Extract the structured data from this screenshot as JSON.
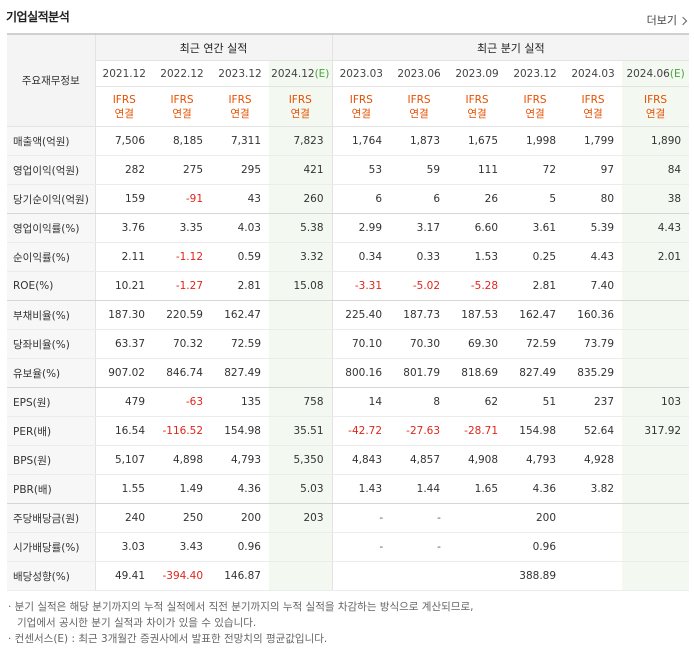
{
  "title": "기업실적분석",
  "more_label": "더보기",
  "header": {
    "row_label": "주요재무정보",
    "annual_group": "최근 연간 실적",
    "quarterly_group": "최근 분기 실적",
    "periods": [
      "2021.12",
      "2022.12",
      "2023.12",
      "2024.12",
      "2023.03",
      "2023.06",
      "2023.09",
      "2023.12",
      "2024.03",
      "2024.06"
    ],
    "estimate_flags": [
      false,
      false,
      false,
      true,
      false,
      false,
      false,
      false,
      false,
      true
    ],
    "estimate_mark": "(E)",
    "standard_top": "IFRS",
    "standard_bottom": "연결"
  },
  "rows": [
    {
      "label": "매출액(억원)",
      "values": [
        "7,506",
        "8,185",
        "7,311",
        "7,823",
        "1,764",
        "1,873",
        "1,675",
        "1,998",
        "1,799",
        "1,890"
      ]
    },
    {
      "label": "영업이익(억원)",
      "values": [
        "282",
        "275",
        "295",
        "421",
        "53",
        "59",
        "111",
        "72",
        "97",
        "84"
      ]
    },
    {
      "label": "당기순이익(억원)",
      "values": [
        "159",
        "-91",
        "43",
        "260",
        "6",
        "6",
        "26",
        "5",
        "80",
        "38"
      ],
      "group_end": true
    },
    {
      "label": "영업이익률(%)",
      "values": [
        "3.76",
        "3.35",
        "4.03",
        "5.38",
        "2.99",
        "3.17",
        "6.60",
        "3.61",
        "5.39",
        "4.43"
      ]
    },
    {
      "label": "순이익률(%)",
      "values": [
        "2.11",
        "-1.12",
        "0.59",
        "3.32",
        "0.34",
        "0.33",
        "1.53",
        "0.25",
        "4.43",
        "2.01"
      ]
    },
    {
      "label": "ROE(%)",
      "values": [
        "10.21",
        "-1.27",
        "2.81",
        "15.08",
        "-3.31",
        "-5.02",
        "-5.28",
        "2.81",
        "7.40",
        ""
      ],
      "group_end": true
    },
    {
      "label": "부채비율(%)",
      "values": [
        "187.30",
        "220.59",
        "162.47",
        "",
        "225.40",
        "187.73",
        "187.53",
        "162.47",
        "160.36",
        ""
      ]
    },
    {
      "label": "당좌비율(%)",
      "values": [
        "63.37",
        "70.32",
        "72.59",
        "",
        "70.10",
        "70.30",
        "69.30",
        "72.59",
        "73.79",
        ""
      ]
    },
    {
      "label": "유보율(%)",
      "values": [
        "907.02",
        "846.74",
        "827.49",
        "",
        "800.16",
        "801.79",
        "818.69",
        "827.49",
        "835.29",
        ""
      ],
      "group_end": true
    },
    {
      "label": "EPS(원)",
      "values": [
        "479",
        "-63",
        "135",
        "758",
        "14",
        "8",
        "62",
        "51",
        "237",
        "103"
      ]
    },
    {
      "label": "PER(배)",
      "values": [
        "16.54",
        "-116.52",
        "154.98",
        "35.51",
        "-42.72",
        "-27.63",
        "-28.71",
        "154.98",
        "52.64",
        "317.92"
      ]
    },
    {
      "label": "BPS(원)",
      "values": [
        "5,107",
        "4,898",
        "4,793",
        "5,350",
        "4,843",
        "4,857",
        "4,908",
        "4,793",
        "4,928",
        ""
      ]
    },
    {
      "label": "PBR(배)",
      "values": [
        "1.55",
        "1.49",
        "4.36",
        "5.03",
        "1.43",
        "1.44",
        "1.65",
        "4.36",
        "3.82",
        ""
      ],
      "group_end": true
    },
    {
      "label": "주당배당금(원)",
      "values": [
        "240",
        "250",
        "200",
        "203",
        "-",
        "-",
        "",
        "200",
        "",
        ""
      ]
    },
    {
      "label": "시가배당률(%)",
      "values": [
        "3.03",
        "3.43",
        "0.96",
        "",
        "-",
        "-",
        "",
        "0.96",
        "",
        ""
      ]
    },
    {
      "label": "배당성향(%)",
      "values": [
        "49.41",
        "-394.40",
        "146.87",
        "",
        "",
        "",
        "",
        "388.89",
        "",
        ""
      ]
    }
  ],
  "notes": [
    "· 분기 실적은 해당 분기까지의 누적 실적에서 직전 분기까지의 누적 실적을 차감하는 방식으로 계산되므로,",
    "기업에서 공시한 분기 실적과 차이가 있을 수 있습니다.",
    "· 컨센서스(E) : 최근 3개월간 증권사에서 발표한 전망치의 평균값입니다."
  ],
  "colors": {
    "negative": "#e0261b",
    "ifrs": "#e65000",
    "estimate_mark": "#4aa33a",
    "estimate_bg": "#f3f8f1"
  }
}
